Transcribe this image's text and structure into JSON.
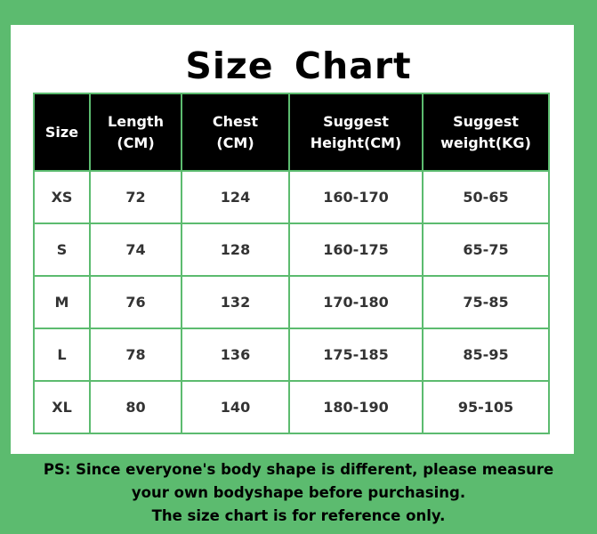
{
  "title": "Size  Chart",
  "headers": [
    [
      "Size",
      ""
    ],
    [
      "Length",
      "(CM)"
    ],
    [
      "Chest",
      "(CM)"
    ],
    [
      "Suggest",
      "Height(CM)"
    ],
    [
      "Suggest",
      "weight(KG)"
    ]
  ],
  "rows": [
    [
      "XS",
      "72",
      "124",
      "160-170",
      "50-65"
    ],
    [
      "S",
      "74",
      "128",
      "160-175",
      "65-75"
    ],
    [
      "M",
      "76",
      "132",
      "170-180",
      "75-85"
    ],
    [
      "L",
      "78",
      "136",
      "175-185",
      "85-95"
    ],
    [
      "XL",
      "80",
      "140",
      "180-190",
      "95-105"
    ]
  ],
  "note": [
    "PS: Since everyone's body shape is different, please measure",
    "your own bodyshape before purchasing.",
    "The size chart is for reference only."
  ],
  "colors": {
    "background": "#5cbb6f",
    "header": "#000000",
    "border": "#5cbb6f"
  }
}
